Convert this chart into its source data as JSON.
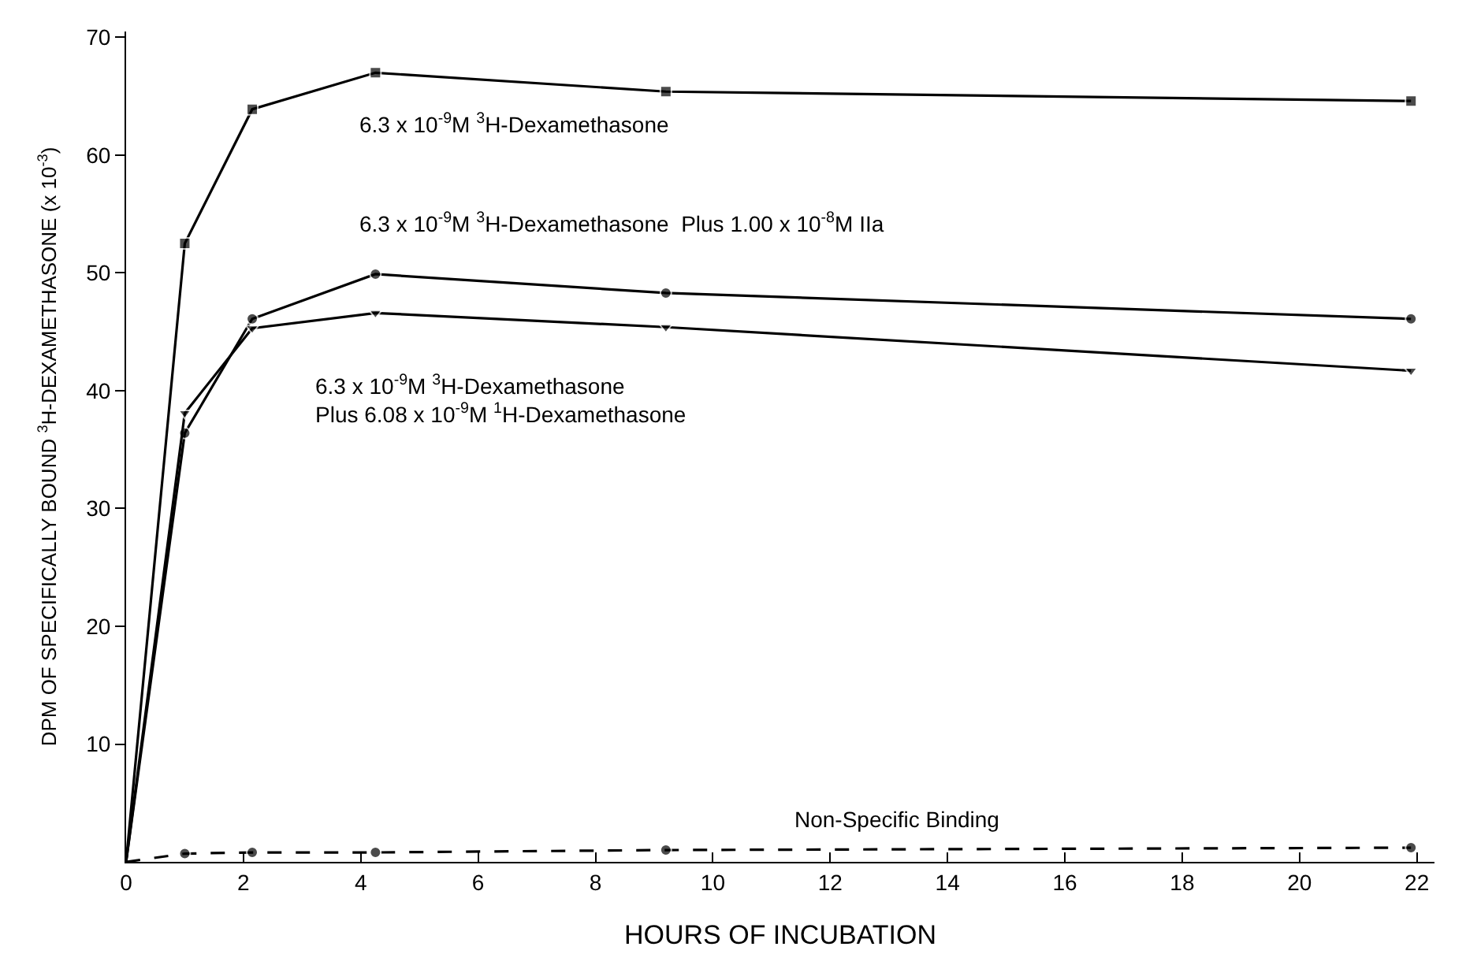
{
  "chart_data": {
    "type": "line",
    "xlabel": "HOURS OF INCUBATION",
    "ylabel": "DPM OF SPECIFICALLY BOUND $^{3}$H-DEXAMETHASONE (x 10$^{-3}$)",
    "xlim": [
      0,
      22.3
    ],
    "ylim": [
      0,
      70.5
    ],
    "xticks": [
      0,
      2,
      4,
      6,
      8,
      10,
      12,
      14,
      16,
      18,
      20,
      22
    ],
    "yticks": [
      10,
      20,
      30,
      40,
      50,
      60,
      70
    ],
    "series": [
      {
        "name": "6.3 x 10$^{-9}$M $^{3}$H-Dexamethasone",
        "color": "#000000",
        "marker": "square",
        "line_style": "solid",
        "x": [
          0,
          1,
          2.15,
          4.25,
          9.2,
          21.9
        ],
        "values": [
          0,
          52.5,
          63.9,
          67,
          65.4,
          64.6
        ]
      },
      {
        "name": "6.3 x 10$^{-9}$M $^{3}$H-Dexamethasone  Plus 1.00 x 10$^{-8}$M IIa",
        "color": "#000000",
        "marker": "circle",
        "line_style": "solid",
        "x": [
          0,
          1,
          2.15,
          4.25,
          9.2,
          21.9
        ],
        "values": [
          0,
          36.4,
          46.1,
          49.9,
          48.3,
          46.1
        ]
      },
      {
        "name": "6.3 x 10$^{-9}$M $^{3}$H-Dexamethasone\nPlus 6.08 x 10$^{-9}$M $^{1}$H-Dexamethasone",
        "color": "#000000",
        "marker": "triangle",
        "line_style": "solid",
        "x": [
          0,
          1,
          2.15,
          4.25,
          9.2,
          21.9
        ],
        "values": [
          0,
          38.1,
          45.3,
          46.6,
          45.4,
          41.7
        ]
      },
      {
        "name": "Non-Specific Binding",
        "color": "#000000",
        "marker": "circle",
        "line_style": "dashed",
        "x": [
          0,
          1,
          2.15,
          4.25,
          9.2,
          21.9
        ],
        "values": [
          0,
          0.7,
          0.8,
          0.8,
          1.0,
          1.2
        ]
      }
    ]
  }
}
